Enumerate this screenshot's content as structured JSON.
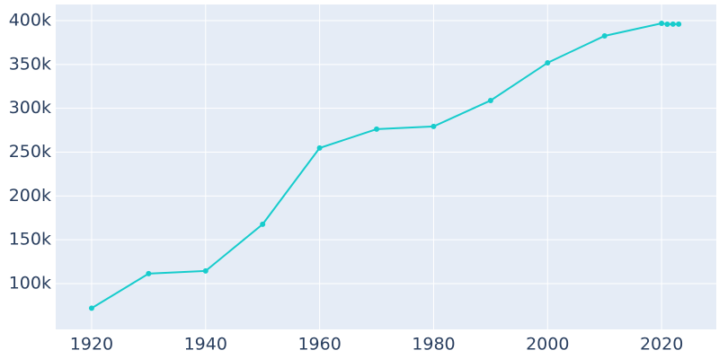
{
  "chart_data": {
    "type": "line",
    "x": [
      1920,
      1930,
      1940,
      1950,
      1960,
      1970,
      1980,
      1990,
      2000,
      2010,
      2020,
      2021,
      2022,
      2023
    ],
    "series": [
      {
        "color": "#17cccc",
        "values": [
          72000,
          111400,
          114500,
          167700,
          254700,
          276200,
          279300,
          308900,
          351900,
          382600,
          396900,
          395900,
          396000,
          396000
        ]
      }
    ],
    "xlim": [
      1913.7,
      2029.6
    ],
    "ylim": [
      47800,
      418400
    ],
    "xticks": [
      1920,
      1940,
      1960,
      1980,
      2000,
      2020
    ],
    "yticks": [
      {
        "value": 100000,
        "label": "100k"
      },
      {
        "value": 150000,
        "label": "150k"
      },
      {
        "value": 200000,
        "label": "200k"
      },
      {
        "value": 250000,
        "label": "250k"
      },
      {
        "value": 300000,
        "label": "300k"
      },
      {
        "value": 350000,
        "label": "350k"
      },
      {
        "value": 400000,
        "label": "400k"
      }
    ],
    "grid": true
  }
}
